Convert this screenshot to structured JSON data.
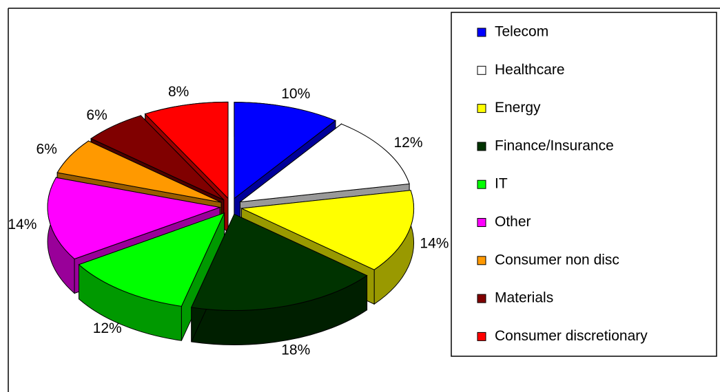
{
  "chart_data": {
    "type": "pie",
    "categories": [
      "Telecom",
      "Healthcare",
      "Energy",
      "Finance/Insurance",
      "IT",
      "Other",
      "Consumer non disc",
      "Materials",
      "Consumer discretionary"
    ],
    "values": [
      10,
      12,
      14,
      18,
      12,
      14,
      6,
      6,
      8
    ],
    "value_labels": [
      "10%",
      "12%",
      "14%",
      "18%",
      "12%",
      "14%",
      "6%",
      "6%",
      "8%"
    ],
    "colors": [
      "#0000ff",
      "#ffffff",
      "#ffff00",
      "#003300",
      "#00ff00",
      "#ff00ff",
      "#ff9900",
      "#800000",
      "#ff0000"
    ],
    "legend": "right"
  }
}
